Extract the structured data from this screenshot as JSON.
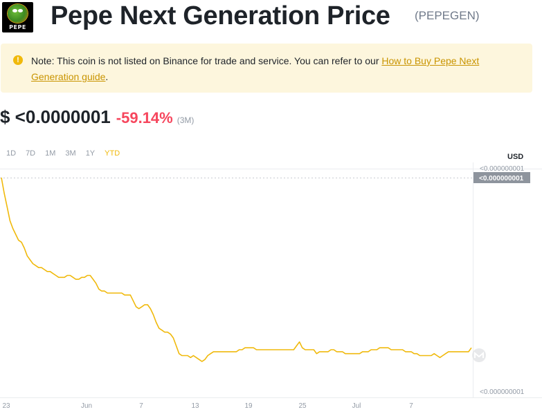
{
  "header": {
    "logo_text": "PEPE",
    "title": "Pepe Next Generation Price",
    "symbol": "(PEPEGEN)"
  },
  "note": {
    "text": "Note: This coin is not listed on Binance for trade and service. You can refer to our ",
    "link_text": "How to Buy Pepe Next Generation guide",
    "suffix": "."
  },
  "price": {
    "value": "$ <0.0000001",
    "change": "-59.14%",
    "period": "(3M)"
  },
  "ranges": [
    {
      "label": "1D",
      "active": false
    },
    {
      "label": "7D",
      "active": false
    },
    {
      "label": "1M",
      "active": false
    },
    {
      "label": "3M",
      "active": false
    },
    {
      "label": "1Y",
      "active": false
    },
    {
      "label": "YTD",
      "active": true
    }
  ],
  "currency": "USD",
  "colors": {
    "line": "#f0b90b",
    "negative": "#f6465d",
    "tag_bg": "#8e949d"
  },
  "chart_data": {
    "type": "line",
    "x_tick_labels": [
      "23",
      "Jun",
      "7",
      "13",
      "19",
      "25",
      "Jul",
      "7"
    ],
    "y_tick_labels": [
      "<0.000000001",
      "<0.000000001"
    ],
    "current_value_tag": "<0.000000001",
    "series": [
      {
        "values": [
          100,
          92,
          85,
          78,
          74,
          71,
          68,
          67,
          64,
          60,
          58,
          56,
          55,
          54,
          54,
          53,
          52,
          52,
          51,
          50,
          49,
          49,
          49,
          50,
          50,
          49,
          48,
          48,
          49,
          49,
          50,
          50,
          48,
          46,
          43,
          42,
          42,
          41,
          41,
          41,
          41,
          41,
          41,
          40,
          40,
          40,
          37,
          34,
          33,
          34,
          35,
          35,
          33,
          30,
          26,
          23,
          22,
          21,
          21,
          20,
          18,
          14,
          10,
          9,
          9,
          9,
          8,
          9,
          8,
          7,
          6,
          7,
          9,
          10,
          11,
          11,
          11,
          11,
          11,
          11,
          11,
          11,
          11,
          12,
          12,
          13,
          13,
          13,
          13,
          12,
          12,
          12,
          12,
          12,
          12,
          12,
          12,
          12,
          12,
          12,
          12,
          12,
          12,
          14,
          16,
          13,
          12,
          12,
          12,
          12,
          10,
          11,
          11,
          11,
          11,
          12,
          12,
          11,
          11,
          11,
          10,
          10,
          10,
          10,
          10,
          10,
          11,
          11,
          11,
          12,
          12,
          12,
          13,
          13,
          13,
          13,
          12,
          12,
          12,
          12,
          12,
          11,
          11,
          11,
          10,
          10,
          9,
          9,
          9,
          9,
          9,
          10,
          9,
          8,
          9,
          10,
          11,
          11,
          11,
          11,
          11,
          11,
          11,
          11,
          13
        ]
      }
    ],
    "grid": false,
    "legend": "none"
  }
}
